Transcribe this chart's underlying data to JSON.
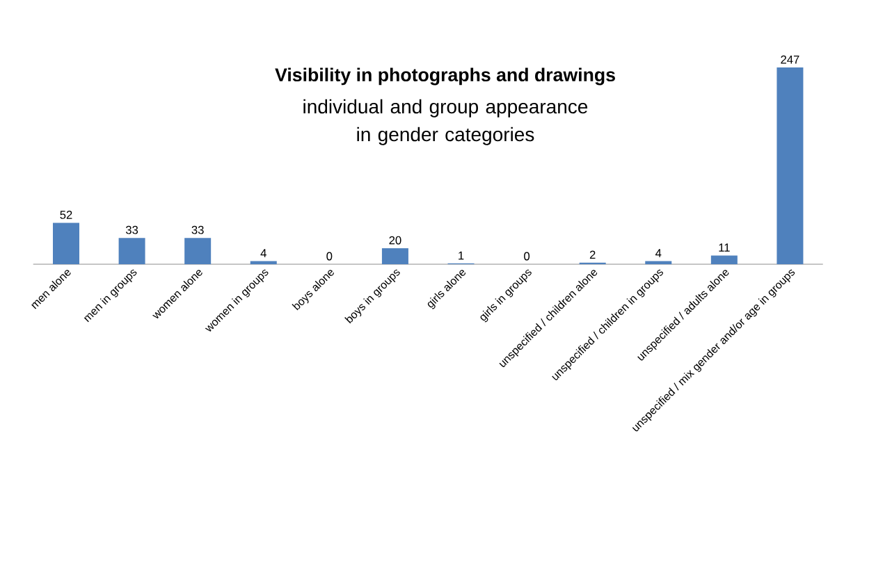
{
  "chart_data": {
    "type": "bar",
    "title": "Visibility in photographs and drawings",
    "subtitle": "individual and group appearance in gender categories",
    "categories": [
      "men alone",
      "men in groups",
      "women alone",
      "women in groups",
      "boys alone",
      "boys in groups",
      "girls alone",
      "girls in groups",
      "unspecified / children alone",
      "unspecified / children in groups",
      "unspecified / adults alone",
      "unspecified / mix gender and/or age in groups"
    ],
    "values": [
      52,
      33,
      33,
      4,
      0,
      20,
      1,
      0,
      2,
      4,
      11,
      247
    ],
    "color": "#4f81bd",
    "data_labels": true
  }
}
